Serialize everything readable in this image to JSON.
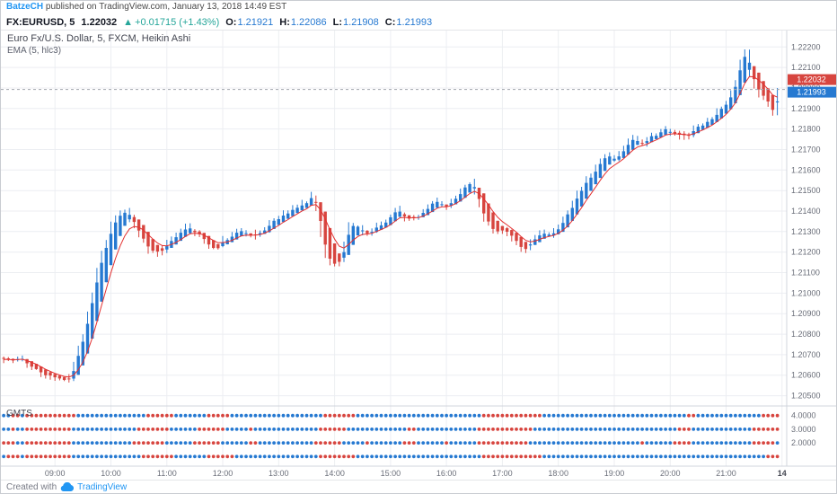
{
  "header": {
    "publisher": "BatzeCH",
    "published_text": " published on TradingView.com, January 13, 2018 14:49 EST"
  },
  "quote_bar": {
    "symbol": "FX:EURUSD, 5",
    "last": "1.22032",
    "direction_icon": "▲",
    "change": "+0.01715 (+1.43%)",
    "ohlc": [
      {
        "label": "O:",
        "value": "1.21921"
      },
      {
        "label": "H:",
        "value": "1.22086"
      },
      {
        "label": "L:",
        "value": "1.21908"
      },
      {
        "label": "C:",
        "value": "1.21993"
      }
    ]
  },
  "legend": {
    "title": "Euro Fx/U.S. Dollar, 5, FXCM, Heikin Ashi",
    "indicator": "EMA (5, hlc3)"
  },
  "footer": {
    "created_with": "Created with",
    "brand": "TradingView"
  },
  "colors": {
    "up": "#2679d1",
    "down": "#d7453f",
    "ema": "#e33030",
    "change_up": "#26a69a",
    "link": "#2196f3",
    "ohlc_value": "#2679d1",
    "grid": "#eceef2",
    "frame": "#d1d4dc",
    "axis_text": "#6a6e79",
    "dashed_line": "#a3a6af",
    "badge_ema_bg": "#d7453f",
    "badge_last_bg": "#2679d1"
  },
  "chart_data": {
    "type": "candlestick",
    "style": "Heikin Ashi 5-minute with EMA(5,hlc3) overlay and GMTS dot indicator pane",
    "title": "Euro Fx/U.S. Dollar, 5, FXCM, Heikin Ashi",
    "time_domain": [
      482,
      1325
    ],
    "first_candle_min": 485,
    "interval_min": 5,
    "num_candles": 167,
    "seed": 7,
    "noise": 0.00012,
    "wick": 0.0002,
    "ema_period": 5,
    "last_price": 1.21993,
    "y_axis": {
      "min": 1.2045,
      "max": 1.2228
    },
    "y_ticks": [
      "1.22200",
      "1.22100",
      "1.22000",
      "1.21900",
      "1.21800",
      "1.21700",
      "1.21600",
      "1.21500",
      "1.21400",
      "1.21300",
      "1.21200",
      "1.21100",
      "1.21000",
      "1.20900",
      "1.20800",
      "1.20700",
      "1.20600",
      "1.20500"
    ],
    "x_ticks": [
      [
        540,
        "09:00"
      ],
      [
        600,
        "10:00"
      ],
      [
        660,
        "11:00"
      ],
      [
        720,
        "12:00"
      ],
      [
        780,
        "13:00"
      ],
      [
        840,
        "14:00"
      ],
      [
        900,
        "15:00"
      ],
      [
        960,
        "16:00"
      ],
      [
        1020,
        "17:00"
      ],
      [
        1080,
        "18:00"
      ],
      [
        1140,
        "19:00"
      ],
      [
        1200,
        "20:00"
      ],
      [
        1260,
        "21:00"
      ],
      [
        1320,
        "14",
        true
      ]
    ],
    "badges": [
      {
        "text": "1.22032",
        "role": "ema-value"
      },
      {
        "text": "1.21993",
        "role": "last-price"
      }
    ],
    "price_path": [
      [
        485,
        1.2069
      ],
      [
        492,
        1.20665
      ],
      [
        500,
        1.2068
      ],
      [
        510,
        1.2065
      ],
      [
        520,
        1.2062
      ],
      [
        530,
        1.206
      ],
      [
        540,
        1.2058
      ],
      [
        548,
        1.20565
      ],
      [
        555,
        1.206
      ],
      [
        562,
        1.2068
      ],
      [
        570,
        1.208
      ],
      [
        578,
        1.2095
      ],
      [
        585,
        1.211
      ],
      [
        592,
        1.2122
      ],
      [
        600,
        1.2132
      ],
      [
        608,
        1.2138
      ],
      [
        615,
        1.214
      ],
      [
        622,
        1.2135
      ],
      [
        630,
        1.2128
      ],
      [
        640,
        1.2122
      ],
      [
        650,
        1.21195
      ],
      [
        660,
        1.2124
      ],
      [
        670,
        1.2129
      ],
      [
        680,
        1.2132
      ],
      [
        690,
        1.2129
      ],
      [
        700,
        1.2125
      ],
      [
        710,
        1.21215
      ],
      [
        720,
        1.2125
      ],
      [
        730,
        1.21285
      ],
      [
        740,
        1.213
      ],
      [
        750,
        1.2127
      ],
      [
        760,
        1.213
      ],
      [
        770,
        1.2134
      ],
      [
        780,
        1.2137
      ],
      [
        790,
        1.21395
      ],
      [
        800,
        1.2142
      ],
      [
        810,
        1.2145
      ],
      [
        818,
        1.2148
      ],
      [
        824,
        1.213
      ],
      [
        830,
        1.2118
      ],
      [
        838,
        1.2113
      ],
      [
        846,
        1.2116
      ],
      [
        855,
        1.2134
      ],
      [
        865,
        1.2131
      ],
      [
        875,
        1.2128
      ],
      [
        885,
        1.2132
      ],
      [
        895,
        1.2135
      ],
      [
        905,
        1.214
      ],
      [
        915,
        1.2138
      ],
      [
        925,
        1.2136
      ],
      [
        935,
        1.214
      ],
      [
        945,
        1.2144
      ],
      [
        955,
        1.2142
      ],
      [
        965,
        1.2145
      ],
      [
        975,
        1.215
      ],
      [
        983,
        1.2155
      ],
      [
        990,
        1.2148
      ],
      [
        1000,
        1.2136
      ],
      [
        1010,
        1.2129
      ],
      [
        1020,
        1.2131
      ],
      [
        1030,
        1.2126
      ],
      [
        1040,
        1.2121
      ],
      [
        1050,
        1.2125
      ],
      [
        1060,
        1.213
      ],
      [
        1070,
        1.2128
      ],
      [
        1080,
        1.2132
      ],
      [
        1090,
        1.214
      ],
      [
        1100,
        1.2148
      ],
      [
        1110,
        1.2155
      ],
      [
        1120,
        1.2162
      ],
      [
        1130,
        1.2168
      ],
      [
        1140,
        1.2165
      ],
      [
        1150,
        1.217
      ],
      [
        1158,
        1.2176
      ],
      [
        1165,
        1.2172
      ],
      [
        1175,
        1.2175
      ],
      [
        1185,
        1.2178
      ],
      [
        1195,
        1.218
      ],
      [
        1205,
        1.2178
      ],
      [
        1215,
        1.2176
      ],
      [
        1225,
        1.218
      ],
      [
        1235,
        1.2183
      ],
      [
        1245,
        1.2186
      ],
      [
        1255,
        1.219
      ],
      [
        1262,
        1.2195
      ],
      [
        1270,
        1.2205
      ],
      [
        1276,
        1.2215
      ],
      [
        1281,
        1.2218
      ],
      [
        1286,
        1.2205
      ],
      [
        1292,
        1.2198
      ],
      [
        1298,
        1.2195
      ],
      [
        1304,
        1.2193
      ],
      [
        1310,
        1.2187
      ],
      [
        1315,
        1.21993
      ]
    ],
    "lower_pane": {
      "label": "GMTS",
      "rows": [
        4,
        3,
        2,
        1
      ],
      "range": [
        0.3,
        4.7
      ],
      "ticks": [
        [
          4,
          "4.0000"
        ],
        [
          3,
          "3.0000"
        ],
        [
          2,
          "2.0000"
        ]
      ]
    }
  }
}
